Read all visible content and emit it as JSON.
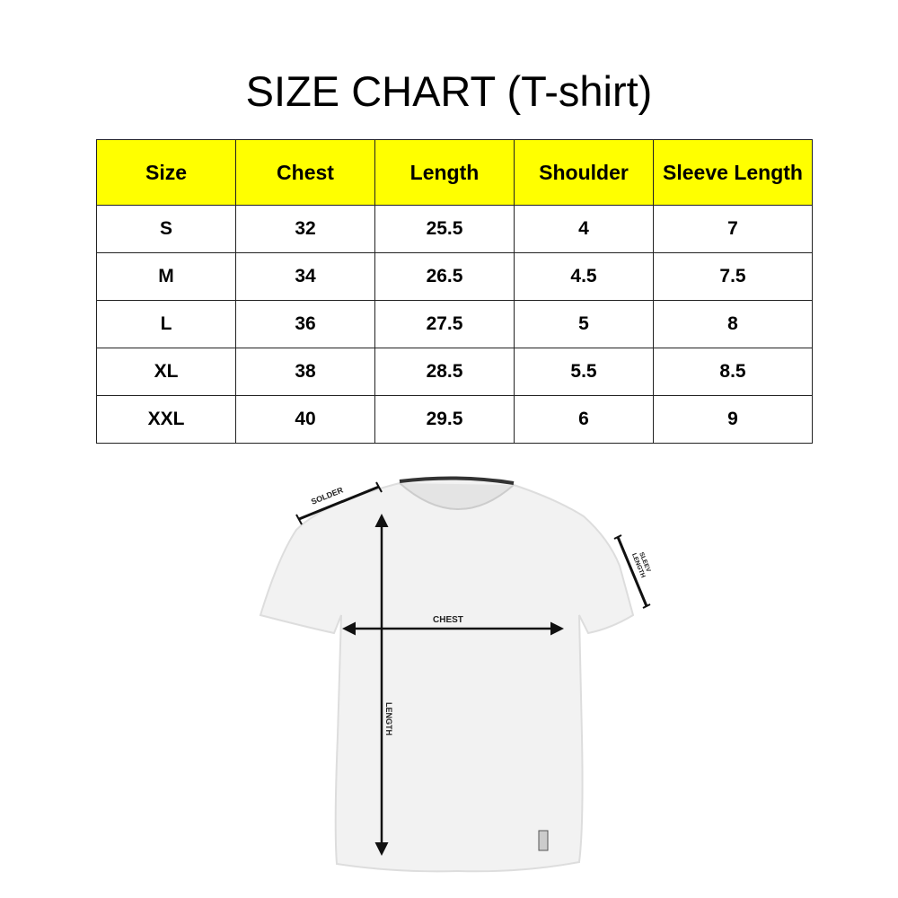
{
  "title": "SIZE CHART (T-shirt)",
  "table": {
    "headers": [
      "Size",
      "Chest",
      "Length",
      "Shoulder",
      "Sleeve Length"
    ],
    "header_color": "#ffff00",
    "rows": [
      [
        "S",
        "32",
        "25.5",
        "4",
        "7"
      ],
      [
        "M",
        "34",
        "26.5",
        "4.5",
        "7.5"
      ],
      [
        "L",
        "36",
        "27.5",
        "5",
        "8"
      ],
      [
        "XL",
        "38",
        "28.5",
        "5.5",
        "8.5"
      ],
      [
        "XXL",
        "40",
        "29.5",
        "6",
        "9"
      ]
    ]
  },
  "diagram": {
    "shoulder_label": "SOLDER",
    "sleeve_label_line1": "SLEEV",
    "sleeve_label_line2": "LENGTH",
    "chest_label": "CHEST",
    "length_label": "LENGTH"
  }
}
